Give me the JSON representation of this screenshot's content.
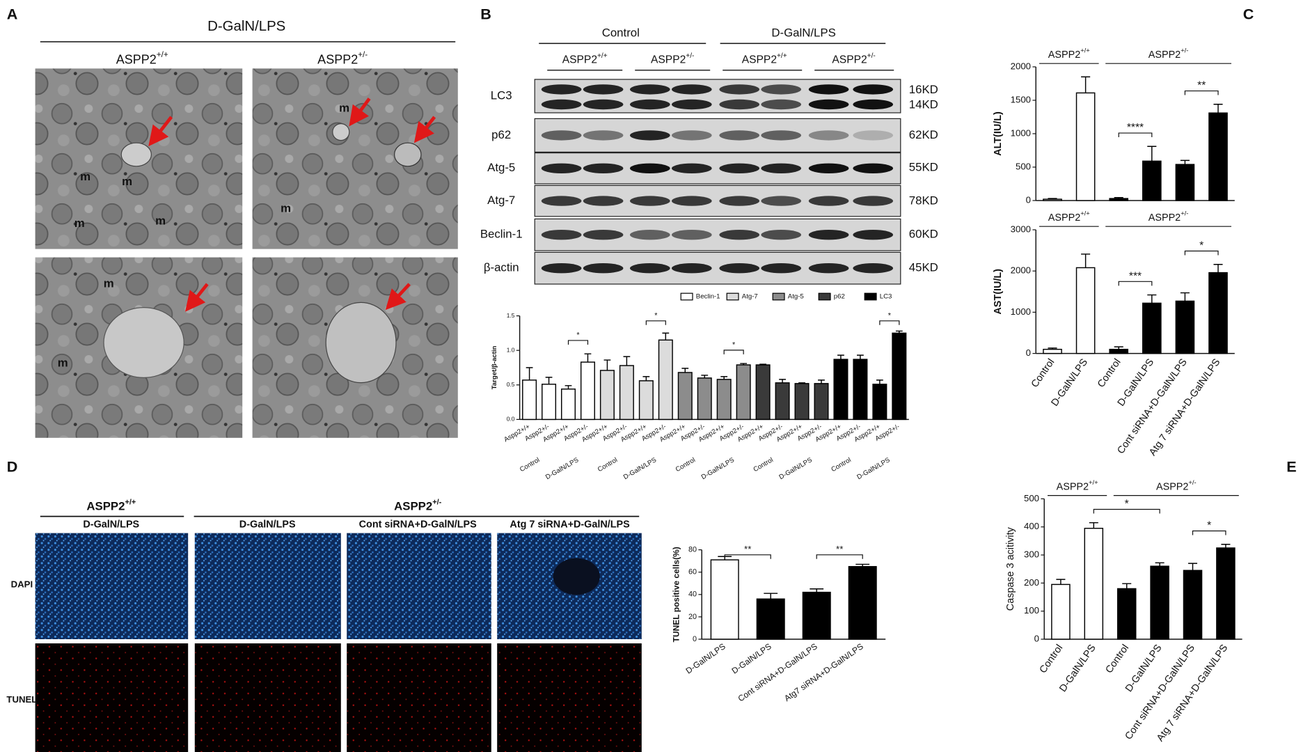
{
  "panel_labels": [
    "A",
    "B",
    "C",
    "D",
    "E"
  ],
  "panel_a": {
    "title": "D-GalN/LPS",
    "columns": [
      {
        "text": "ASPP2",
        "sup": "+/+"
      },
      {
        "text": "ASPP2",
        "sup": "+/-"
      }
    ],
    "image_marks": [
      [
        "m",
        "m",
        "m",
        "m"
      ],
      [
        "m",
        "m"
      ],
      [
        "m",
        "m"
      ],
      []
    ]
  },
  "panel_b": {
    "groups": [
      "Control",
      "D-GalN/LPS"
    ],
    "subgroups": [
      {
        "text": "ASPP2",
        "sup": "+/+"
      },
      {
        "text": "ASPP2",
        "sup": "+/-"
      },
      {
        "text": "ASPP2",
        "sup": "+/+"
      },
      {
        "text": "ASPP2",
        "sup": "+/-"
      }
    ],
    "bands": [
      "LC3",
      "p62",
      "Atg-5",
      "Atg-7",
      "Beclin-1",
      "β-actin"
    ],
    "sizes": [
      "16KD",
      "14KD",
      "62KD",
      "55KD",
      "78KD",
      "60KD",
      "45KD"
    ]
  },
  "panel_d": {
    "groups": [
      {
        "text": "ASPP2",
        "sup": "+/+"
      },
      {
        "text": "ASPP2",
        "sup": "+/-"
      }
    ],
    "columns": [
      "D-GalN/LPS",
      "D-GalN/LPS",
      "Cont siRNA+D-GalN/LPS",
      "Atg 7 siRNA+D-GalN/LPS"
    ],
    "rows": [
      "DAPI",
      "TUNEL"
    ]
  },
  "chart_data": [
    {
      "type": "bar",
      "y_label": "Target/β-actin",
      "categories": [
        "Aspp2+/+",
        "Aspp2+/-",
        "Aspp2+/+",
        "Aspp2+/-",
        "Aspp2+/+",
        "Aspp2+/-",
        "Aspp2+/+",
        "Aspp2+/-",
        "Aspp2+/+",
        "Aspp2+/-",
        "Aspp2+/+",
        "Aspp2+/-",
        "Aspp2+/+",
        "Aspp2+/-",
        "Aspp2+/+",
        "Aspp2+/-",
        "Aspp2+/+",
        "Aspp2+/-",
        "Aspp2+/+",
        "Aspp2+/-"
      ],
      "group_labels": [
        {
          "text": "Control",
          "from": 0,
          "to": 1
        },
        {
          "text": "D-GalN/LPS",
          "from": 2,
          "to": 3
        },
        {
          "text": "Control",
          "from": 4,
          "to": 5
        },
        {
          "text": "D-GalN/LPS",
          "from": 6,
          "to": 7
        },
        {
          "text": "Control",
          "from": 8,
          "to": 9
        },
        {
          "text": "D-GalN/LPS",
          "from": 10,
          "to": 11
        },
        {
          "text": "Control",
          "from": 12,
          "to": 13
        },
        {
          "text": "D-GalN/LPS",
          "from": 14,
          "to": 15
        },
        {
          "text": "Control",
          "from": 16,
          "to": 17
        },
        {
          "text": "D-GalN/LPS",
          "from": 18,
          "to": 19
        }
      ],
      "values": [
        0.57,
        0.51,
        0.44,
        0.83,
        0.71,
        0.78,
        0.56,
        1.15,
        0.68,
        0.6,
        0.58,
        0.79,
        0.79,
        0.53,
        0.52,
        0.52,
        0.87,
        0.87,
        0.51,
        1.25
      ],
      "errors": [
        0.18,
        0.1,
        0.05,
        0.12,
        0.15,
        0.13,
        0.06,
        0.1,
        0.06,
        0.04,
        0.04,
        0.02,
        0.01,
        0.05,
        0.01,
        0.05,
        0.06,
        0.06,
        0.06,
        0.03
      ],
      "colors": [
        "#ffffff",
        "#ffffff",
        "#ffffff",
        "#ffffff",
        "#dcdcdc",
        "#dcdcdc",
        "#dcdcdc",
        "#dcdcdc",
        "#8c8c8c",
        "#8c8c8c",
        "#8c8c8c",
        "#8c8c8c",
        "#3a3a3a",
        "#3a3a3a",
        "#3a3a3a",
        "#3a3a3a",
        "#000000",
        "#000000",
        "#000000",
        "#000000"
      ],
      "legend": [
        {
          "name": "Beclin-1",
          "color": "#ffffff"
        },
        {
          "name": "Atg-7",
          "color": "#dcdcdc"
        },
        {
          "name": "Atg-5",
          "color": "#8c8c8c"
        },
        {
          "name": "p62",
          "color": "#3a3a3a"
        },
        {
          "name": "LC3",
          "color": "#000000"
        }
      ],
      "ylim": [
        0,
        1.5
      ],
      "yticks": [
        {
          "value": 0,
          "label": "0.0"
        },
        {
          "value": 0.5,
          "label": "0.5"
        },
        {
          "value": 1,
          "label": "1.0"
        },
        {
          "value": 1.5,
          "label": "1.5"
        }
      ],
      "brackets": [
        {
          "text": "*",
          "from": 2,
          "to": 3
        },
        {
          "text": "*",
          "from": 6,
          "to": 7
        },
        {
          "text": "*",
          "from": 10,
          "to": 11
        },
        {
          "text": "*",
          "from": 18,
          "to": 19
        }
      ]
    },
    {
      "type": "bar",
      "y_label": "ALT(IU/L)",
      "categories": [
        null,
        null,
        null,
        null,
        null,
        null
      ],
      "values": [
        20,
        1610,
        30,
        590,
        540,
        1310
      ],
      "errors": [
        10,
        240,
        15,
        220,
        60,
        130
      ],
      "colors": [
        "#ffffff",
        "#ffffff",
        "#000000",
        "#000000",
        "#000000",
        "#000000"
      ],
      "ylim": [
        0,
        2000
      ],
      "yticks": [
        0,
        500,
        1000,
        1500,
        2000
      ],
      "headers": [
        {
          "text": "ASPP2",
          "sup": "+/+",
          "from": 0,
          "to": 1
        },
        {
          "text": "ASPP2",
          "sup": "+/-",
          "from": 2,
          "to": 5
        }
      ],
      "brackets": [
        {
          "text": "****",
          "from": 2,
          "to": 3
        },
        {
          "text": "**",
          "from": 4,
          "to": 5
        }
      ]
    },
    {
      "type": "bar",
      "y_label": "AST(IU/L)",
      "categories": [
        "Control",
        "D-GalN/LPS",
        "Control",
        "D-GalN/LPS",
        "Cont siRNA+D-GalN/LPS",
        "Atg 7 siRNA+D-GalN/LPS"
      ],
      "values": [
        100,
        2080,
        100,
        1220,
        1270,
        1960
      ],
      "errors": [
        30,
        330,
        60,
        200,
        200,
        200
      ],
      "colors": [
        "#ffffff",
        "#ffffff",
        "#000000",
        "#000000",
        "#000000",
        "#000000"
      ],
      "ylim": [
        0,
        3000
      ],
      "yticks": [
        0,
        1000,
        2000,
        3000
      ],
      "headers": [
        {
          "text": "ASPP2",
          "sup": "+/+",
          "from": 0,
          "to": 1
        },
        {
          "text": "ASPP2",
          "sup": "+/-",
          "from": 2,
          "to": 5
        }
      ],
      "brackets": [
        {
          "text": "***",
          "from": 2,
          "to": 3
        },
        {
          "text": "*",
          "from": 4,
          "to": 5
        }
      ]
    },
    {
      "type": "bar",
      "y_label": "TUNEL positive cells(%)",
      "categories": [
        "D-GalN/LPS",
        "D-GalN/LPS",
        "Cont siRNA+D-GalN/LPS",
        "Atg7 siRNA+D-GalN/LPS"
      ],
      "values": [
        71,
        36,
        42,
        65
      ],
      "errors": [
        3,
        5,
        3,
        2
      ],
      "colors": [
        "#ffffff",
        "#000000",
        "#000000",
        "#000000"
      ],
      "ylim": [
        0,
        80
      ],
      "yticks": [
        0,
        20,
        40,
        60,
        80
      ],
      "brackets": [
        {
          "text": "**",
          "from": 0,
          "to": 1
        },
        {
          "text": "**",
          "from": 2,
          "to": 3
        }
      ]
    },
    {
      "type": "bar",
      "y_label": "Caspase 3 acitivity",
      "categories": [
        "Control",
        "D-GalN/LPS",
        "Control",
        "D-GalN/LPS",
        "Cont siRNA+D-GalN/LPS",
        "Atg 7 siRNA+D-GalN/LPS"
      ],
      "values": [
        195,
        395,
        180,
        260,
        245,
        325
      ],
      "errors": [
        18,
        20,
        18,
        12,
        25,
        13
      ],
      "colors": [
        "#ffffff",
        "#ffffff",
        "#000000",
        "#000000",
        "#000000",
        "#000000"
      ],
      "ylim": [
        0,
        500
      ],
      "yticks": [
        0,
        100,
        200,
        300,
        400,
        500
      ],
      "headers": [
        {
          "text": "ASPP2",
          "sup": "+/+",
          "from": 0,
          "to": 1
        },
        {
          "text": "ASPP2",
          "sup": "+/-",
          "from": 2,
          "to": 5
        }
      ],
      "brackets": [
        {
          "text": "*",
          "from": 1,
          "to": 3
        },
        {
          "text": "*",
          "from": 4,
          "to": 5
        }
      ]
    }
  ]
}
